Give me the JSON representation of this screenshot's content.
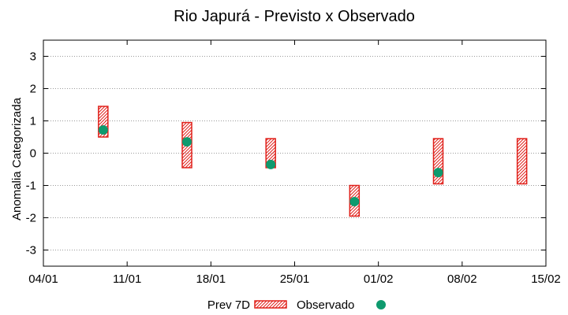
{
  "chart_data": {
    "type": "interval-scatter",
    "title": "Rio Japurá - Previsto x Observado",
    "xlabel": "",
    "ylabel": "Anomalia Categorizada",
    "x_ticks": [
      "04/01",
      "11/01",
      "18/01",
      "25/01",
      "01/02",
      "08/02",
      "15/02"
    ],
    "xlim_days": [
      0,
      42
    ],
    "ylim": [
      -3.5,
      3.5
    ],
    "y_ticks": [
      -3,
      -2,
      -1,
      0,
      1,
      2,
      3
    ],
    "grid": "dotted horizontal",
    "legend_position": "bottom-center",
    "series": [
      {
        "name": "Prev 7D",
        "kind": "hatched-box",
        "color": "#e0201a",
        "points": [
          {
            "day": 5,
            "low": 0.5,
            "high": 1.45
          },
          {
            "day": 12,
            "low": -0.45,
            "high": 0.95
          },
          {
            "day": 19,
            "low": -0.45,
            "high": 0.45
          },
          {
            "day": 26,
            "low": -1.95,
            "high": -1.0
          },
          {
            "day": 33,
            "low": -0.95,
            "high": 0.45
          },
          {
            "day": 40,
            "low": -0.95,
            "high": 0.45
          }
        ]
      },
      {
        "name": "Observado",
        "kind": "point",
        "color": "#0e9a6e",
        "points": [
          {
            "day": 5,
            "value": 0.72
          },
          {
            "day": 12,
            "value": 0.35
          },
          {
            "day": 19,
            "value": -0.35
          },
          {
            "day": 26,
            "value": -1.5
          },
          {
            "day": 33,
            "value": -0.6
          }
        ]
      }
    ]
  }
}
